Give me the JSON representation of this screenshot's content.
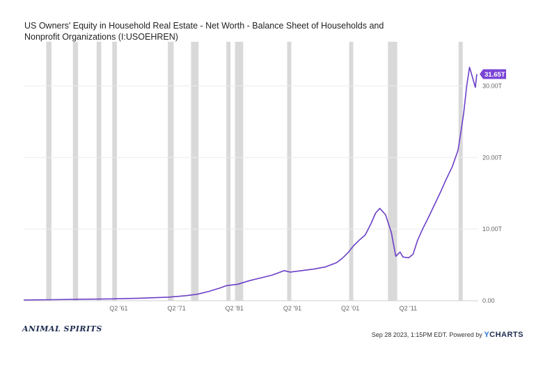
{
  "chart_data": {
    "type": "line",
    "title": "US Owners' Equity in Household Real Estate - Net Worth - Balance Sheet of Households and Nonprofit Organizations (I:USOEHREN)",
    "xlabel": "",
    "ylabel": "",
    "ylim": [
      0,
      35
    ],
    "y_ticks": [
      "0.00",
      "10.00T",
      "20.00T",
      "30.00T"
    ],
    "y_tick_values": [
      0,
      10,
      20,
      30
    ],
    "x_ticks": [
      "Q2 '61",
      "Q2 '71",
      "Q2 '81",
      "Q2 '91",
      "Q2 '01",
      "Q2 '11"
    ],
    "x_tick_values": [
      1961.4,
      1971.4,
      1981.4,
      1991.4,
      2001.4,
      2011.4
    ],
    "xlim": [
      1945.0,
      2023.5
    ],
    "series": [
      {
        "color": "#6b3fc8",
        "x": [
          1945.0,
          1950.0,
          1955.0,
          1960.0,
          1965.0,
          1970.0,
          1973.0,
          1975.0,
          1977.0,
          1979.0,
          1980.0,
          1982.0,
          1984.0,
          1986.0,
          1988.0,
          1990.0,
          1991.0,
          1993.0,
          1995.0,
          1997.0,
          1999.0,
          2000.0,
          2001.0,
          2002.0,
          2003.0,
          2004.0,
          2005.0,
          2005.75,
          2006.5,
          2007.5,
          2008.5,
          2009.25,
          2010.0,
          2010.5,
          2011.5,
          2012.25,
          2013.0,
          2014.0,
          2015.0,
          2016.0,
          2017.0,
          2018.0,
          2019.0,
          2020.0,
          2020.5,
          2021.0,
          2021.5,
          2022.0,
          2022.5,
          2023.0,
          2023.25
        ],
        "values": [
          0.1,
          0.15,
          0.2,
          0.25,
          0.35,
          0.5,
          0.7,
          0.9,
          1.3,
          1.8,
          2.1,
          2.3,
          2.8,
          3.2,
          3.6,
          4.2,
          4.0,
          4.2,
          4.4,
          4.7,
          5.3,
          5.9,
          6.7,
          7.7,
          8.5,
          9.2,
          10.8,
          12.2,
          12.9,
          12.0,
          9.5,
          6.2,
          6.8,
          6.1,
          6.0,
          6.5,
          8.4,
          10.2,
          11.8,
          13.5,
          15.2,
          17.0,
          18.7,
          21.0,
          23.5,
          26.3,
          30.0,
          32.6,
          31.2,
          29.8,
          31.65
        ]
      }
    ],
    "recessions": [
      [
        1948.9,
        1949.8
      ],
      [
        1953.5,
        1954.4
      ],
      [
        1957.6,
        1958.4
      ],
      [
        1960.3,
        1961.1
      ],
      [
        1969.9,
        1970.9
      ],
      [
        1973.9,
        1975.2
      ],
      [
        1980.0,
        1980.6
      ],
      [
        1981.5,
        1982.9
      ],
      [
        1990.5,
        1991.2
      ],
      [
        2001.2,
        2001.9
      ],
      [
        2007.9,
        2009.5
      ],
      [
        2020.1,
        2020.4
      ]
    ],
    "last_value_label": "31.65T",
    "last_value_color": "#7a45d6",
    "recession_color": "#d9d9d9"
  },
  "footer": {
    "brand_left": "ANIMAL SPIRITS",
    "timestamp": "Sep 28 2023, 1:15PM EDT. Powered by",
    "brand_right_y": "Y",
    "brand_right_rest": "CHARTS"
  }
}
